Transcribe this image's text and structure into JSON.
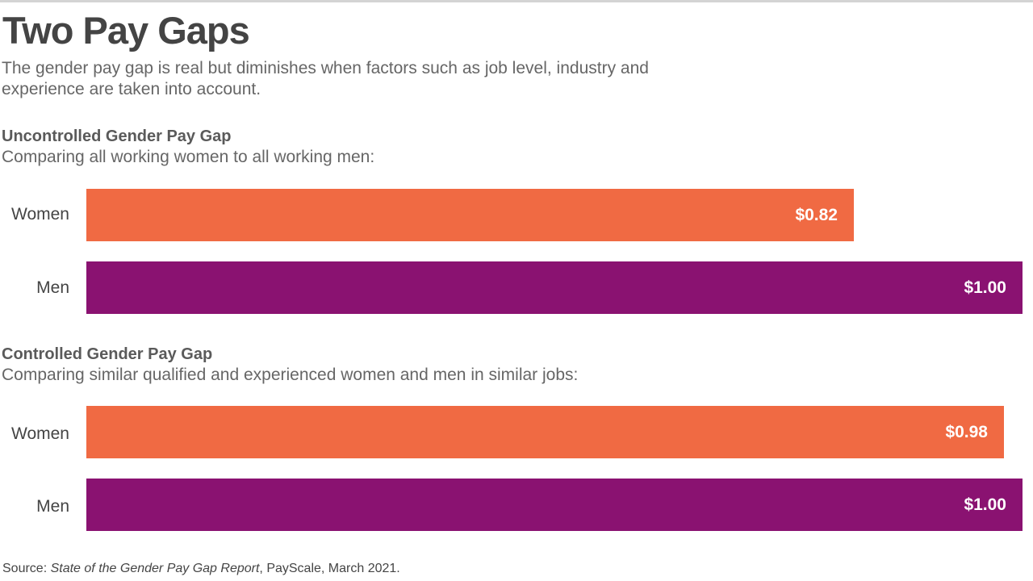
{
  "title": "Two Pay Gaps",
  "subtitle": "The gender pay gap is real but diminishes when factors such as job level, industry and experience are taken into account.",
  "colors": {
    "women": "#f06a43",
    "men": "#8a1271"
  },
  "chart_data": [
    {
      "type": "bar",
      "orientation": "horizontal",
      "title": "Uncontrolled Gender Pay Gap",
      "subtitle": "Comparing all working women to all working men:",
      "categories": [
        "Women",
        "Men"
      ],
      "values": [
        0.82,
        1.0
      ],
      "value_labels": [
        "$0.82",
        "$1.00"
      ],
      "xlim": [
        0,
        1.0
      ],
      "grid": false
    },
    {
      "type": "bar",
      "orientation": "horizontal",
      "title": "Controlled Gender Pay Gap",
      "subtitle": "Comparing similar qualified and experienced women and men in similar jobs:",
      "categories": [
        "Women",
        "Men"
      ],
      "values": [
        0.98,
        1.0
      ],
      "value_labels": [
        "$0.98",
        "$1.00"
      ],
      "xlim": [
        0,
        1.0
      ],
      "grid": false
    }
  ],
  "source": {
    "prefix": "Source: ",
    "report": "State of the Gender Pay Gap Report",
    "suffix": ", PayScale, March 2021."
  }
}
